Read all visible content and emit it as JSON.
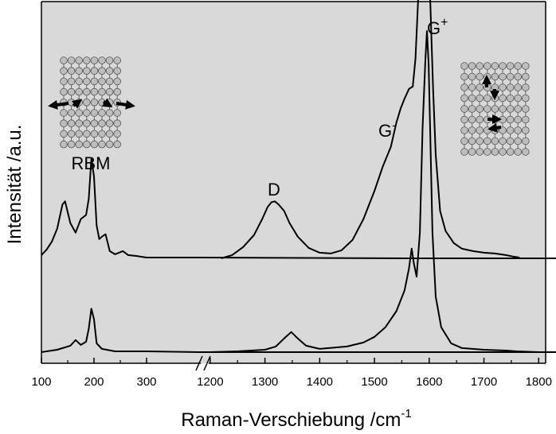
{
  "chart_data": {
    "type": "line",
    "xlabel": "Raman-Verschiebung /cm",
    "xlabel_sup": "-1",
    "ylabel": "Intensität /a.u.",
    "x_axis_break": true,
    "x_segments": [
      {
        "xlim": [
          100,
          1190
        ],
        "ticks": [
          100,
          200,
          300
        ]
      },
      {
        "xlim": [
          1190,
          1800
        ],
        "ticks": [
          1200,
          1300,
          1400,
          1500,
          1600,
          1700,
          1800
        ]
      }
    ],
    "shaded_regions": [
      [
        100,
        1190
      ],
      [
        1280,
        1385
      ],
      [
        1480,
        1578
      ],
      [
        1583,
        1655
      ]
    ],
    "annotations": [
      {
        "text": "RBM",
        "x": 150
      },
      {
        "text": "D",
        "x": 1322
      },
      {
        "text": "G",
        "sup": "-",
        "x": 1540
      },
      {
        "text": "G",
        "sup": "+",
        "x": 1635
      }
    ],
    "series": [
      {
        "x": [
          100,
          110,
          120,
          130,
          140,
          145,
          155,
          165,
          175,
          185,
          190,
          195,
          200,
          205,
          210,
          215,
          222,
          230,
          240,
          255,
          265,
          280,
          290,
          300,
          320,
          400,
          600,
          800,
          1000,
          1190,
          1220,
          1240,
          1260,
          1280,
          1295,
          1305,
          1312,
          1318,
          1325,
          1335,
          1345,
          1360,
          1380,
          1400,
          1420,
          1440,
          1460,
          1480,
          1500,
          1515,
          1530,
          1540,
          1548,
          1555,
          1563,
          1570,
          1575,
          1580,
          1585,
          1590,
          1594,
          1598,
          1602,
          1607,
          1612,
          1620,
          1630,
          1645,
          1660,
          1680,
          1700,
          1720,
          1740,
          1755,
          1765
        ],
        "values": [
          0.05,
          0.12,
          0.22,
          0.38,
          0.68,
          0.72,
          0.45,
          0.33,
          0.5,
          0.55,
          0.75,
          1.25,
          1.03,
          0.42,
          0.25,
          0.28,
          0.31,
          0.1,
          0.06,
          0.1,
          0.05,
          0.04,
          0.03,
          0.02,
          0.02,
          0.02,
          0.015,
          0.01,
          0.01,
          0.01,
          0.01,
          0.05,
          0.15,
          0.3,
          0.5,
          0.65,
          0.71,
          0.72,
          0.68,
          0.6,
          0.45,
          0.28,
          0.14,
          0.08,
          0.07,
          0.11,
          0.24,
          0.5,
          0.85,
          1.15,
          1.4,
          1.7,
          1.88,
          2.0,
          2.12,
          2.15,
          2.5,
          3.25,
          3.7,
          3.85,
          3.95,
          3.75,
          3.2,
          2.15,
          1.3,
          0.6,
          0.35,
          0.2,
          0.13,
          0.1,
          0.08,
          0.07,
          0.05,
          0.03,
          0.02
        ]
      },
      {
        "x": [
          100,
          130,
          155,
          165,
          175,
          185,
          190,
          195,
          200,
          205,
          215,
          240,
          300,
          400,
          600,
          800,
          1000,
          1190,
          1200,
          1250,
          1300,
          1320,
          1335,
          1348,
          1360,
          1375,
          1400,
          1450,
          1480,
          1500,
          1520,
          1540,
          1555,
          1563,
          1568,
          1572,
          1577,
          1583,
          1588,
          1593,
          1596,
          1599,
          1602,
          1606,
          1612,
          1622,
          1640,
          1660,
          1700,
          1740,
          1760,
          1800
        ],
        "values": [
          0.01,
          0.04,
          0.09,
          0.16,
          0.1,
          0.14,
          0.3,
          0.55,
          0.42,
          0.12,
          0.05,
          0.02,
          0.02,
          0.01,
          0.01,
          0.01,
          0.01,
          0.01,
          0.01,
          0.02,
          0.04,
          0.08,
          0.18,
          0.26,
          0.18,
          0.09,
          0.05,
          0.08,
          0.13,
          0.2,
          0.32,
          0.52,
          0.78,
          1.05,
          1.3,
          1.12,
          0.95,
          1.5,
          2.8,
          3.65,
          4.01,
          3.6,
          2.7,
          1.5,
          0.7,
          0.32,
          0.12,
          0.06,
          0.04,
          0.03,
          0.02,
          0.01
        ]
      }
    ]
  }
}
